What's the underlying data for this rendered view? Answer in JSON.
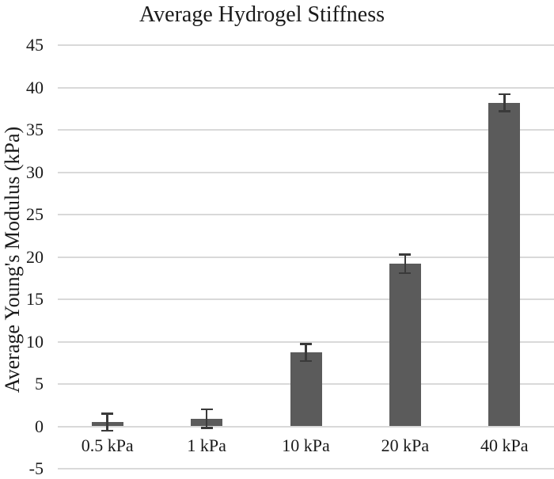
{
  "chart_data": {
    "type": "bar",
    "title": "Average Hydrogel Stiffness",
    "xlabel": "",
    "ylabel": "Average Young's Modulus (kPa)",
    "categories": [
      "0.5 kPa",
      "1 kPa",
      "10 kPa",
      "20 kPa",
      "40 kPa"
    ],
    "values": [
      0.5,
      0.9,
      8.7,
      19.2,
      38.2
    ],
    "error_bars": [
      1.0,
      1.1,
      1.0,
      1.1,
      1.0
    ],
    "ylim": [
      -5,
      45
    ],
    "yticks": [
      45,
      40,
      35,
      30,
      25,
      20,
      15,
      10,
      5,
      0,
      -5
    ],
    "grid": true,
    "legend_position": "none",
    "colors": {
      "bar": "#5b5b5b",
      "error_bar": "#3a3a3a",
      "gridline": "#d9d9d9",
      "text": "#1a1a1a"
    }
  }
}
